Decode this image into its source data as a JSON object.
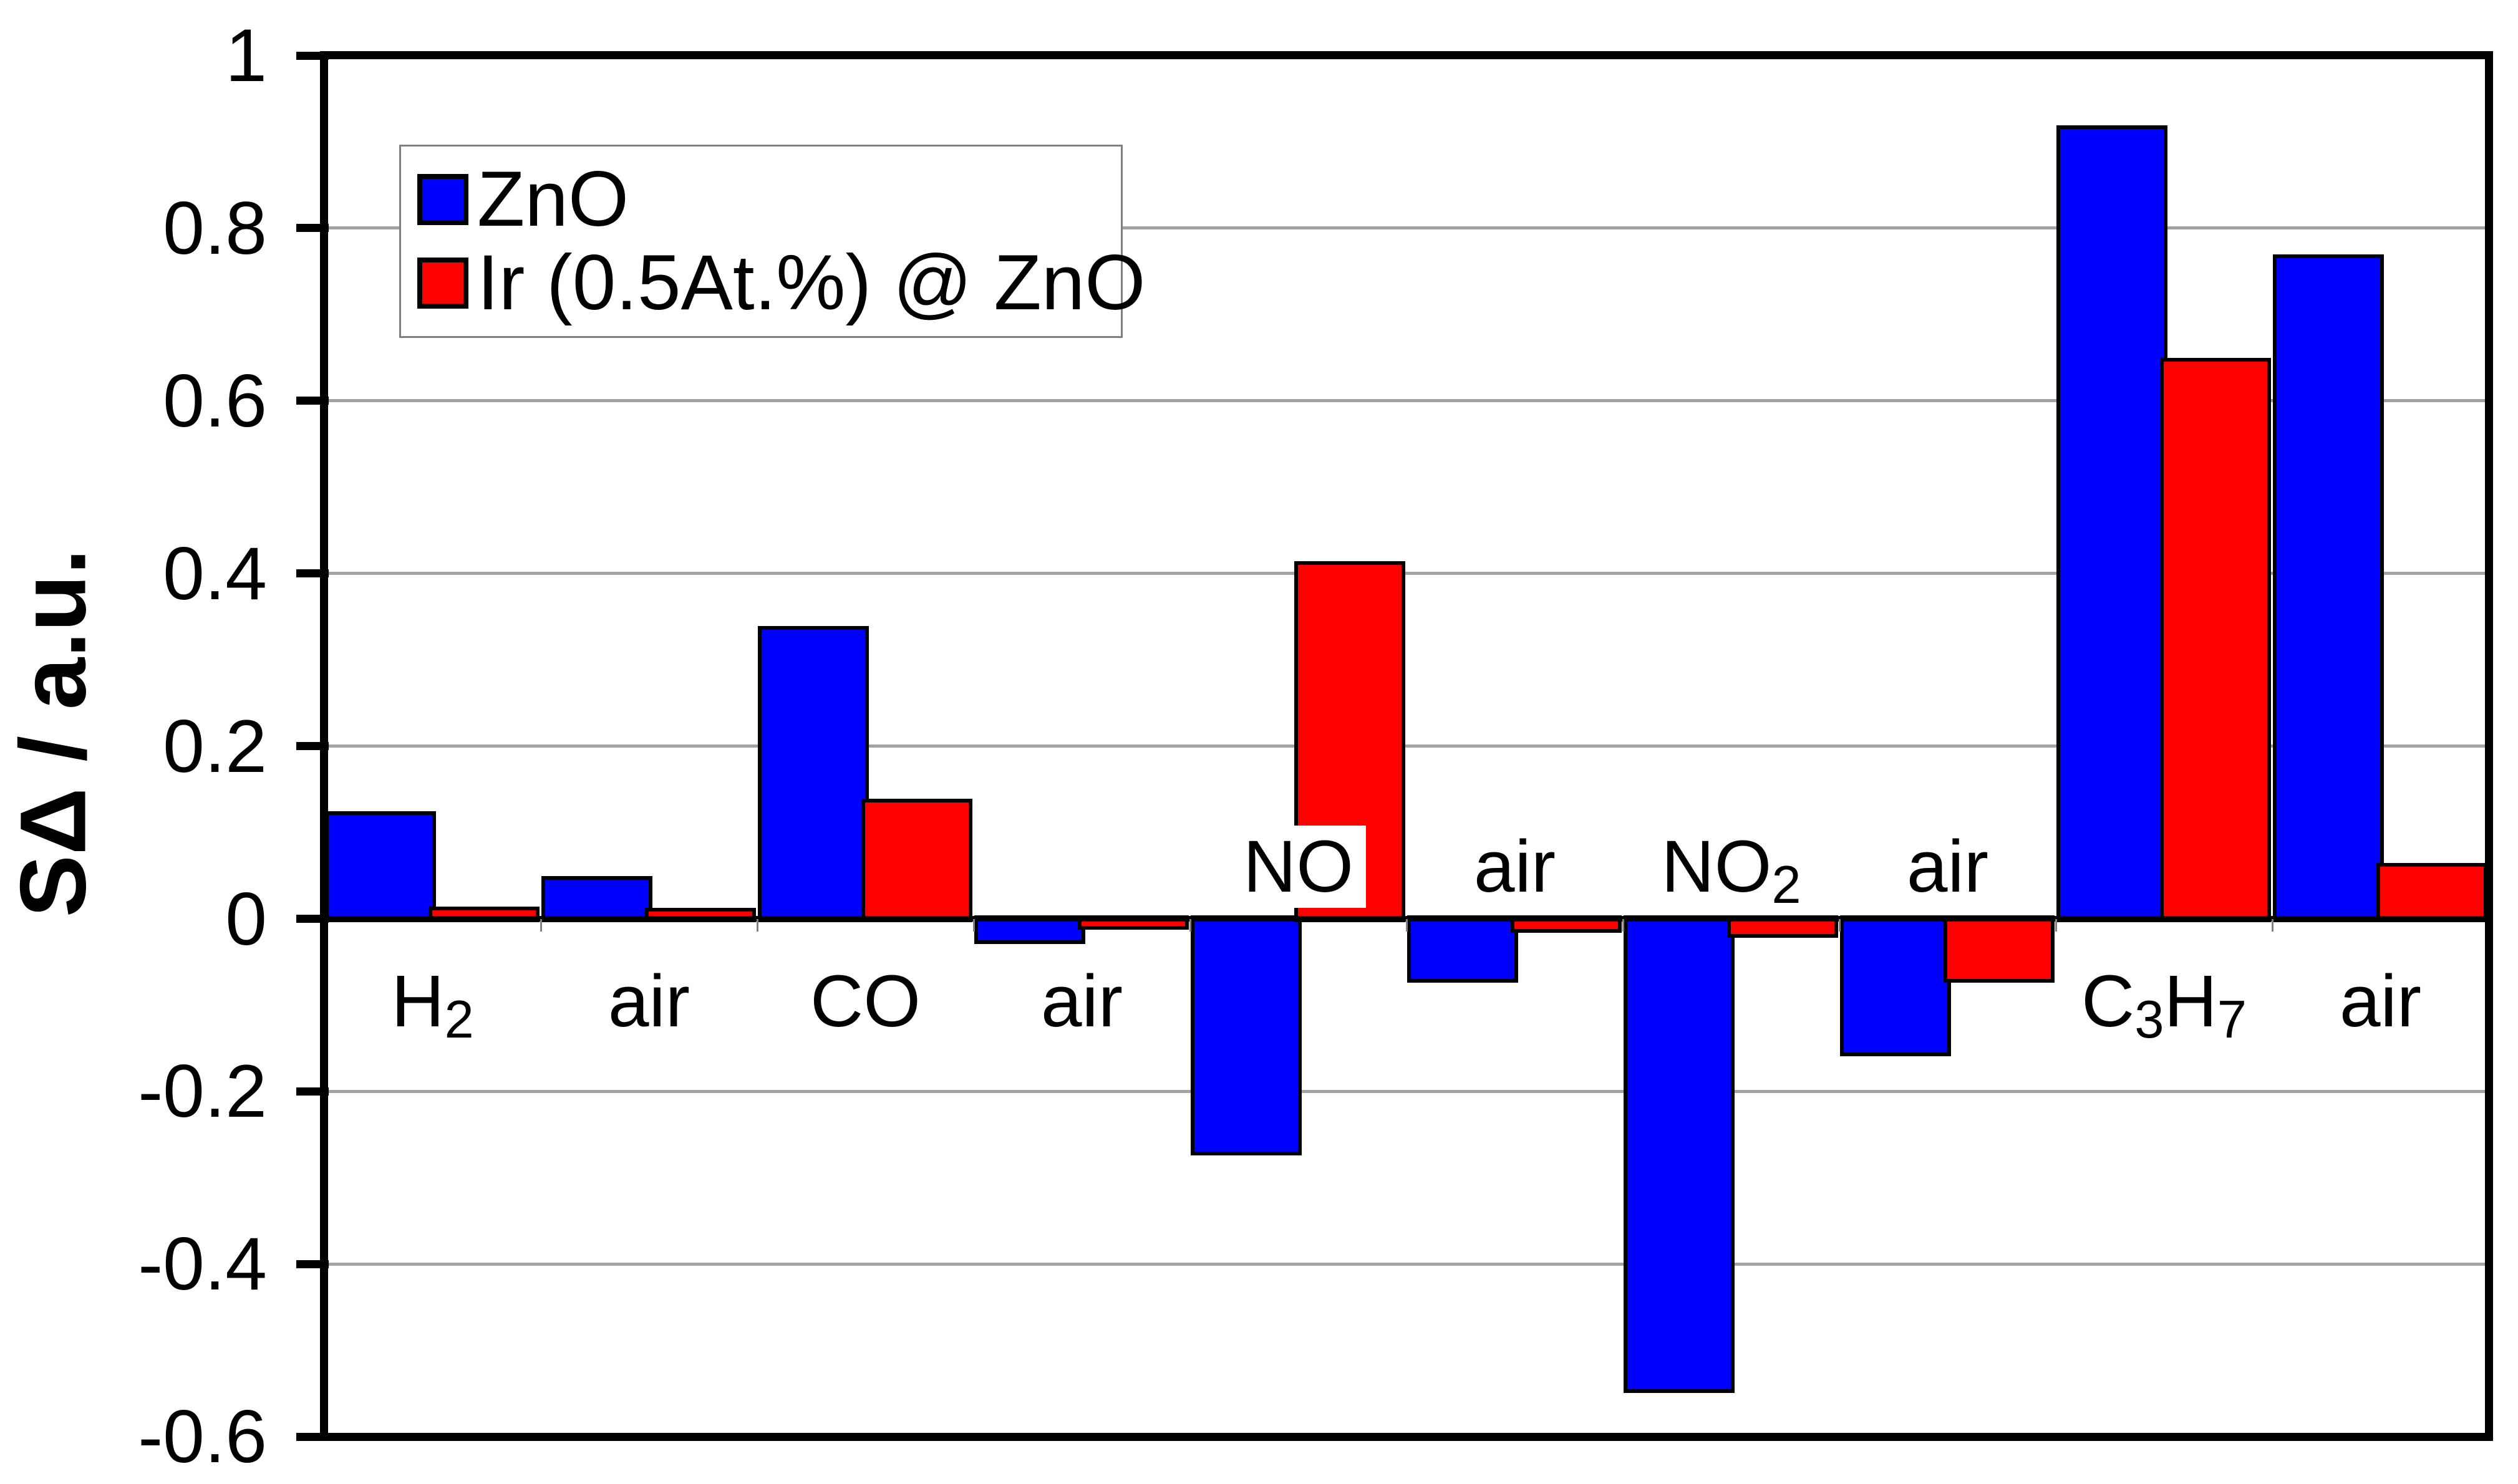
{
  "figure": {
    "background": "#ffffff"
  },
  "chart_data": {
    "type": "bar",
    "title": "",
    "xlabel": "",
    "ylabel": "SΔ / a.u.",
    "ylim": [
      -0.6,
      1.0
    ],
    "ytick_step": 0.2,
    "ytick_values": [
      1,
      0.8,
      0.6,
      0.4,
      0.2,
      0,
      -0.2,
      -0.4,
      -0.6
    ],
    "ytick_labels": [
      "1",
      "0.8",
      "0.6",
      "0.4",
      "0.2",
      "0",
      "-0.2",
      "-0.4",
      "-0.6"
    ],
    "grid": "horizontal-gray-lines",
    "legend_position": "top-left-inside",
    "categories": [
      {
        "id": "h2",
        "text": "H2",
        "parts": [
          {
            "t": "H"
          },
          {
            "t": "2",
            "sub": true
          }
        ],
        "label_side": "below"
      },
      {
        "id": "air-1",
        "text": "air",
        "parts": [
          {
            "t": "air"
          }
        ],
        "label_side": "below"
      },
      {
        "id": "co",
        "text": "CO",
        "parts": [
          {
            "t": "CO"
          }
        ],
        "label_side": "below"
      },
      {
        "id": "air-2",
        "text": "air",
        "parts": [
          {
            "t": "air"
          }
        ],
        "label_side": "below"
      },
      {
        "id": "no",
        "text": "NO",
        "parts": [
          {
            "t": "NO"
          }
        ],
        "label_side": "above"
      },
      {
        "id": "air-3",
        "text": "air",
        "parts": [
          {
            "t": "air"
          }
        ],
        "label_side": "above"
      },
      {
        "id": "no2",
        "text": "NO2",
        "parts": [
          {
            "t": "NO"
          },
          {
            "t": "2",
            "sub": true
          }
        ],
        "label_side": "above"
      },
      {
        "id": "air-4",
        "text": "air",
        "parts": [
          {
            "t": "air"
          }
        ],
        "label_side": "above"
      },
      {
        "id": "c3h7",
        "text": "C3H7",
        "parts": [
          {
            "t": "C"
          },
          {
            "t": "3",
            "sub": true
          },
          {
            "t": "H"
          },
          {
            "t": "7",
            "sub": true
          }
        ],
        "label_side": "below"
      },
      {
        "id": "air-5",
        "text": "air",
        "parts": [
          {
            "t": "air"
          }
        ],
        "label_side": "below"
      }
    ],
    "series": [
      {
        "name": "ZnO",
        "color": "#0000ff",
        "values": [
          0.12,
          0.045,
          0.335,
          -0.025,
          -0.27,
          -0.07,
          -0.545,
          -0.155,
          0.915,
          0.765
        ]
      },
      {
        "name": "Ir (0.5At.%) @ ZnO",
        "color": "#ff0000",
        "values": [
          0.01,
          0.008,
          0.135,
          -0.008,
          0.41,
          -0.012,
          -0.018,
          -0.07,
          0.645,
          0.06
        ]
      }
    ],
    "colors": {
      "bar_border": "#000000",
      "axis": "#000000",
      "gridline": "#a3a3a3",
      "boundary_tick": "#808080",
      "legend_border": "#808080",
      "text": "#000000"
    }
  }
}
